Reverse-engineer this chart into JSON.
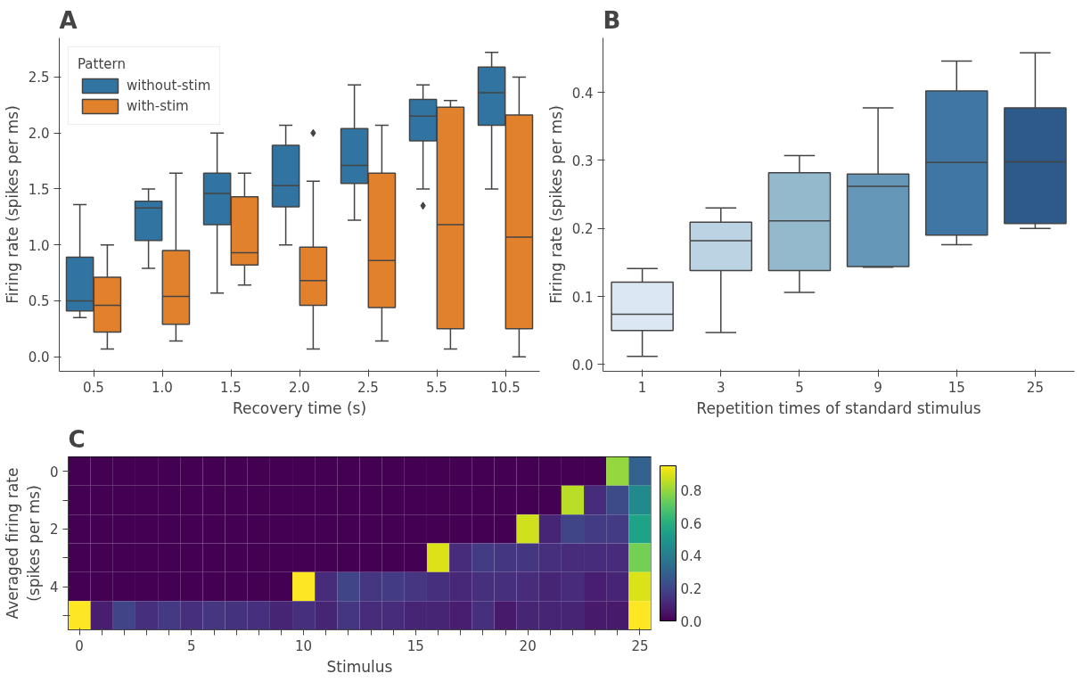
{
  "chart_data": [
    {
      "type": "box",
      "title": "A",
      "xlabel": "Recovery time (s)",
      "ylabel": "Firing rate (spikes per ms)",
      "legend_title": "Pattern",
      "legend": "top left",
      "categories": [
        "0.5",
        "1.0",
        "1.5",
        "2.0",
        "2.5",
        "5.5",
        "10.5"
      ],
      "ylim": [
        -0.13,
        2.85
      ],
      "yticks": [
        {
          "value": 0,
          "label": "0.0"
        },
        {
          "value": 0.5,
          "label": "0.5"
        },
        {
          "value": 1,
          "label": "1.0"
        },
        {
          "value": 1.5,
          "label": "1.5"
        },
        {
          "value": 2,
          "label": "2.0"
        },
        {
          "value": 2.5,
          "label": "2.5"
        }
      ],
      "marker": "diamond",
      "series": [
        {
          "name": "without-stim",
          "color": "#3274a1",
          "boxes": [
            {
              "low": 0.35,
              "q1": 0.41,
              "median": 0.5,
              "q3": 0.89,
              "high": 1.36
            },
            {
              "low": 0.79,
              "q1": 1.04,
              "median": 1.33,
              "q3": 1.39,
              "high": 1.5
            },
            {
              "low": 0.57,
              "q1": 1.18,
              "median": 1.46,
              "q3": 1.64,
              "high": 2.0
            },
            {
              "low": 1.0,
              "q1": 1.34,
              "median": 1.53,
              "q3": 1.89,
              "high": 2.07
            },
            {
              "low": 1.22,
              "q1": 1.55,
              "median": 1.71,
              "q3": 2.04,
              "high": 2.43
            },
            {
              "low": 1.5,
              "q1": 1.93,
              "median": 2.15,
              "q3": 2.3,
              "high": 2.43,
              "outliers": [
                1.35
              ]
            },
            {
              "low": 1.5,
              "q1": 2.07,
              "median": 2.36,
              "q3": 2.59,
              "high": 2.72
            }
          ]
        },
        {
          "name": "with-stim",
          "color": "#e1812c",
          "boxes": [
            {
              "low": 0.07,
              "q1": 0.22,
              "median": 0.46,
              "q3": 0.71,
              "high": 1.0
            },
            {
              "low": 0.14,
              "q1": 0.29,
              "median": 0.54,
              "q3": 0.95,
              "high": 1.64
            },
            {
              "low": 0.64,
              "q1": 0.82,
              "median": 0.93,
              "q3": 1.43,
              "high": 1.64
            },
            {
              "low": 0.07,
              "q1": 0.46,
              "median": 0.68,
              "q3": 0.98,
              "high": 1.57,
              "outliers": [
                2.0
              ]
            },
            {
              "low": 0.14,
              "q1": 0.44,
              "median": 0.86,
              "q3": 1.64,
              "high": 2.07
            },
            {
              "low": 0.07,
              "q1": 0.25,
              "median": 1.18,
              "q3": 2.23,
              "high": 2.29
            },
            {
              "low": 0.0,
              "q1": 0.25,
              "median": 1.07,
              "q3": 2.16,
              "high": 2.5
            }
          ]
        }
      ]
    },
    {
      "type": "box",
      "title": "B",
      "xlabel": "Repetition times of standard stimulus",
      "ylabel": "Firing rate (spikes per ms)",
      "categories": [
        "1",
        "3",
        "5",
        "9",
        "15",
        "25"
      ],
      "ylim": [
        -0.01,
        0.48
      ],
      "yticks": [
        {
          "value": 0,
          "label": "0.0"
        },
        {
          "value": 0.1,
          "label": "0.1"
        },
        {
          "value": 0.2,
          "label": "0.2"
        },
        {
          "value": 0.3,
          "label": "0.3"
        },
        {
          "value": 0.4,
          "label": "0.4"
        }
      ],
      "colors": [
        "#dbe8f3",
        "#bcd3e4",
        "#94b8cc",
        "#6497b8",
        "#3f76a3",
        "#2d5a89"
      ],
      "boxes": [
        {
          "low": 0.012,
          "q1": 0.05,
          "median": 0.074,
          "q3": 0.121,
          "high": 0.141
        },
        {
          "low": 0.047,
          "q1": 0.138,
          "median": 0.182,
          "q3": 0.209,
          "high": 0.23
        },
        {
          "low": 0.106,
          "q1": 0.138,
          "median": 0.211,
          "q3": 0.282,
          "high": 0.307
        },
        {
          "low": 0.143,
          "q1": 0.144,
          "median": 0.262,
          "q3": 0.28,
          "high": 0.377
        },
        {
          "low": 0.176,
          "q1": 0.19,
          "median": 0.297,
          "q3": 0.402,
          "high": 0.446
        },
        {
          "low": 0.2,
          "q1": 0.207,
          "median": 0.298,
          "q3": 0.377,
          "high": 0.458
        }
      ]
    },
    {
      "type": "heatmap",
      "title": "C",
      "xlabel": "Stimulus",
      "ylabel": "Averaged firing rate\n(spikes per ms)",
      "categories": [
        "0",
        null,
        null,
        null,
        null,
        "5",
        null,
        null,
        null,
        null,
        "10",
        null,
        null,
        null,
        null,
        "15",
        null,
        null,
        null,
        null,
        "20",
        null,
        null,
        null,
        null,
        "25"
      ],
      "y_categories": [
        "0",
        null,
        "2",
        null,
        "4",
        null
      ],
      "clim": [
        0,
        0.95
      ],
      "cticks": [
        {
          "value": 0,
          "label": "0.0"
        },
        {
          "value": 0.2,
          "label": "0.2"
        },
        {
          "value": 0.4,
          "label": "0.4"
        },
        {
          "value": 0.6,
          "label": "0.6"
        },
        {
          "value": 0.8,
          "label": "0.8"
        }
      ],
      "cells": [
        [
          0,
          0,
          0,
          0,
          0,
          0,
          0,
          0,
          0,
          0,
          0,
          0,
          0,
          0,
          0,
          0,
          0,
          0,
          0,
          0,
          0,
          0,
          0,
          0,
          0.8,
          0.3
        ],
        [
          0,
          0,
          0,
          0,
          0,
          0,
          0,
          0,
          0,
          0,
          0,
          0,
          0,
          0,
          0,
          0,
          0,
          0,
          0,
          0,
          0,
          0,
          0.85,
          0.12,
          0.22,
          0.45
        ],
        [
          0,
          0,
          0,
          0,
          0,
          0,
          0,
          0,
          0,
          0,
          0,
          0,
          0,
          0,
          0,
          0,
          0,
          0,
          0,
          0,
          0.88,
          0.1,
          0.2,
          0.17,
          0.17,
          0.55
        ],
        [
          0,
          0,
          0,
          0,
          0,
          0,
          0,
          0,
          0,
          0,
          0,
          0,
          0,
          0,
          0,
          0,
          0.9,
          0.12,
          0.17,
          0.15,
          0.15,
          0.13,
          0.12,
          0.12,
          0.12,
          0.75
        ],
        [
          0,
          0,
          0,
          0,
          0,
          0,
          0,
          0,
          0,
          0,
          0.95,
          0.12,
          0.2,
          0.15,
          0.17,
          0.15,
          0.13,
          0.11,
          0.13,
          0.13,
          0.12,
          0.1,
          0.12,
          0.08,
          0.1,
          0.9
        ],
        [
          0.95,
          0.08,
          0.2,
          0.13,
          0.16,
          0.13,
          0.15,
          0.14,
          0.13,
          0.1,
          0.13,
          0.1,
          0.15,
          0.12,
          0.12,
          0.1,
          0.1,
          0.08,
          0.13,
          0.07,
          0.1,
          0.1,
          0.1,
          0.07,
          0.07,
          0.95
        ]
      ]
    }
  ]
}
